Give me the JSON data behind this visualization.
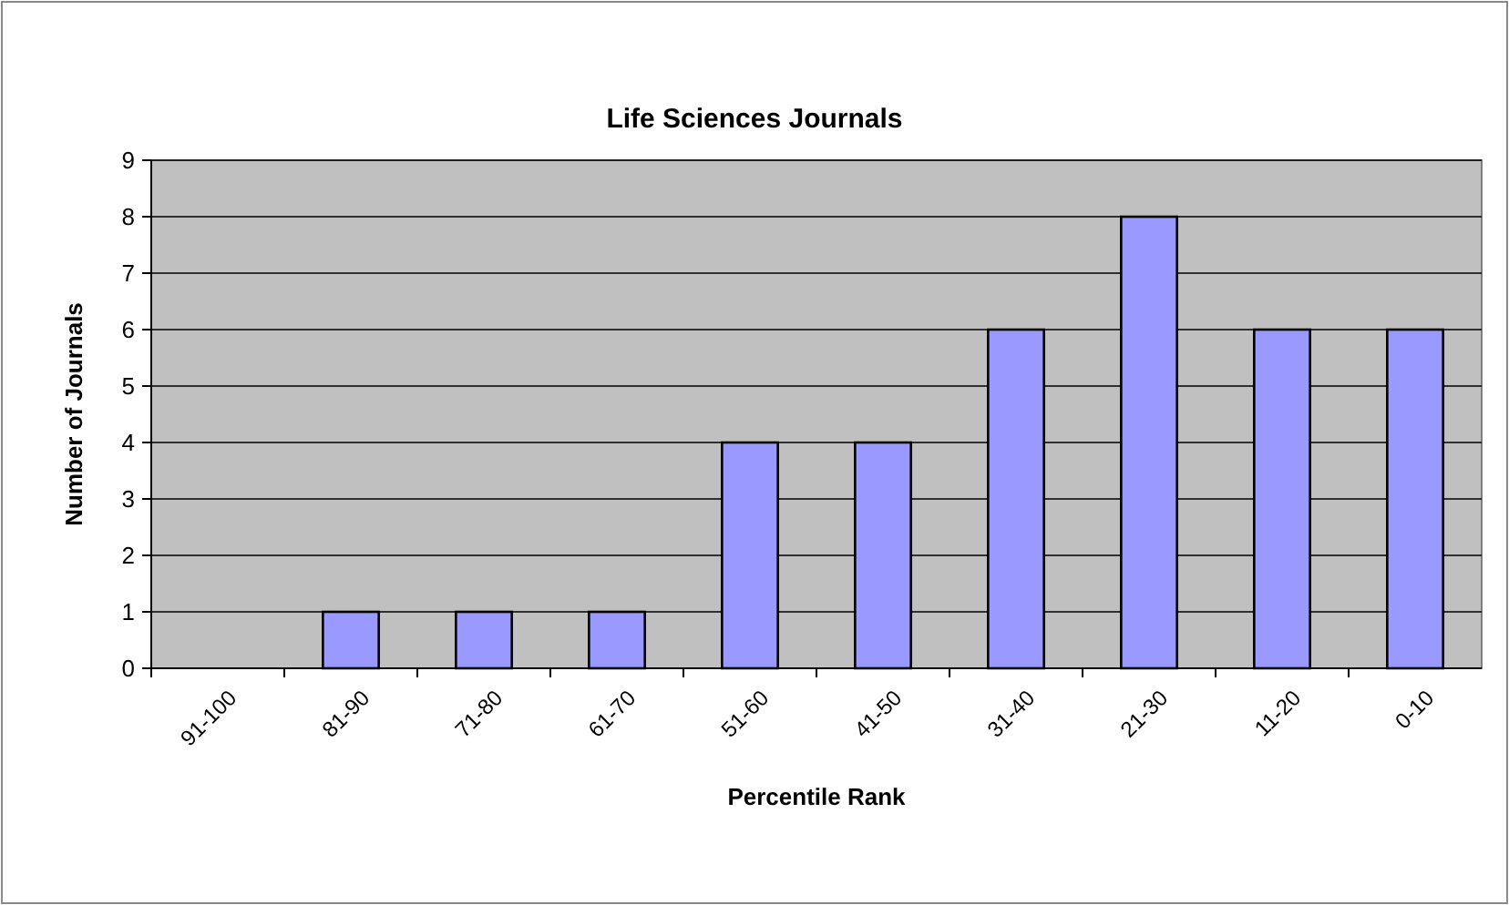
{
  "chart_data": {
    "type": "bar",
    "title": "Life Sciences Journals",
    "xlabel": "Percentile Rank",
    "ylabel": "Number of Journals",
    "categories": [
      "91-100",
      "81-90",
      "71-80",
      "61-70",
      "51-60",
      "41-50",
      "31-40",
      "21-30",
      "11-20",
      "0-10"
    ],
    "values": [
      0,
      1,
      1,
      1,
      4,
      4,
      6,
      8,
      6,
      6
    ],
    "color": "#9999ff",
    "ylim": [
      0,
      9
    ],
    "yticks": [
      0,
      1,
      2,
      3,
      4,
      5,
      6,
      7,
      8,
      9
    ],
    "grid": "y"
  }
}
